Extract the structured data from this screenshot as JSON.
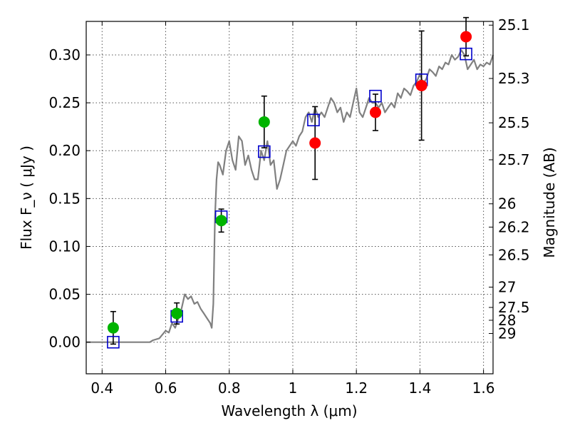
{
  "chart_data": {
    "type": "scatter",
    "xlabel": "Wavelength  λ (μm)",
    "ylabel": "Flux  F_ν  ( μJy )",
    "ylabel2": "Magnitude (AB)",
    "xlim": [
      0.35,
      1.63
    ],
    "ylim": [
      -0.033,
      0.335
    ],
    "xticks": [
      0.4,
      0.6,
      0.8,
      1.0,
      1.2,
      1.4,
      1.6
    ],
    "xtick_labels": [
      "0.4",
      "0.6",
      "0.8",
      "1",
      "1.2",
      "1.4",
      "1.6"
    ],
    "yticks": [
      0.0,
      0.05,
      0.1,
      0.15,
      0.2,
      0.25,
      0.3
    ],
    "ytick_labels": [
      "0.00",
      "0.05",
      "0.10",
      "0.15",
      "0.20",
      "0.25",
      "0.30"
    ],
    "mag_ticks": [
      {
        "label": "25.1",
        "flux": 0.3311
      },
      {
        "label": "25.3",
        "flux": 0.2754
      },
      {
        "label": "25.5",
        "flux": 0.2291
      },
      {
        "label": "25.7",
        "flux": 0.1905
      },
      {
        "label": "26",
        "flux": 0.1445
      },
      {
        "label": "26.2",
        "flux": 0.1202
      },
      {
        "label": "26.5",
        "flux": 0.0912
      },
      {
        "label": "27",
        "flux": 0.0575
      },
      {
        "label": "27.5",
        "flux": 0.0363
      },
      {
        "label": "28",
        "flux": 0.0229
      },
      {
        "label": "29",
        "flux": 0.0091
      }
    ],
    "grid": true,
    "colors": {
      "green": "#00b400",
      "red": "#ff0000",
      "blue": "#0000cc",
      "model": "#808080",
      "errorbar": "#000000"
    },
    "series": [
      {
        "marker": "circle",
        "color": "green",
        "points": [
          {
            "x": 0.435,
            "y": 0.015,
            "yerr": 0.017
          },
          {
            "x": 0.635,
            "y": 0.03,
            "yerr": 0.011
          },
          {
            "x": 0.775,
            "y": 0.127,
            "yerr": 0.012
          },
          {
            "x": 0.91,
            "y": 0.23,
            "yerr": 0.027
          }
        ]
      },
      {
        "marker": "circle",
        "color": "red",
        "points": [
          {
            "x": 1.07,
            "y": 0.208,
            "yerr": 0.038
          },
          {
            "x": 1.26,
            "y": 0.24,
            "yerr": 0.019
          },
          {
            "x": 1.405,
            "y": 0.268,
            "yerr": 0.057
          },
          {
            "x": 1.545,
            "y": 0.319,
            "yerr": 0.02
          }
        ]
      },
      {
        "marker": "open-square",
        "color": "blue",
        "points": [
          {
            "x": 0.435,
            "y": 0.0
          },
          {
            "x": 0.635,
            "y": 0.027
          },
          {
            "x": 0.775,
            "y": 0.131
          },
          {
            "x": 0.91,
            "y": 0.199
          },
          {
            "x": 1.065,
            "y": 0.232
          },
          {
            "x": 1.26,
            "y": 0.257
          },
          {
            "x": 1.405,
            "y": 0.274
          },
          {
            "x": 1.545,
            "y": 0.301
          }
        ]
      },
      {
        "marker": "line",
        "color": "model",
        "x": [
          0.35,
          0.55,
          0.56,
          0.58,
          0.6,
          0.61,
          0.62,
          0.63,
          0.64,
          0.65,
          0.66,
          0.67,
          0.68,
          0.69,
          0.7,
          0.71,
          0.72,
          0.73,
          0.74,
          0.745,
          0.75,
          0.755,
          0.76,
          0.765,
          0.77,
          0.78,
          0.79,
          0.8,
          0.81,
          0.82,
          0.83,
          0.84,
          0.85,
          0.86,
          0.87,
          0.88,
          0.89,
          0.9,
          0.91,
          0.92,
          0.93,
          0.94,
          0.95,
          0.96,
          0.97,
          0.98,
          0.99,
          1.0,
          1.01,
          1.02,
          1.03,
          1.04,
          1.05,
          1.06,
          1.07,
          1.08,
          1.09,
          1.1,
          1.11,
          1.12,
          1.13,
          1.14,
          1.15,
          1.16,
          1.17,
          1.18,
          1.19,
          1.2,
          1.21,
          1.22,
          1.23,
          1.24,
          1.25,
          1.26,
          1.27,
          1.28,
          1.29,
          1.3,
          1.31,
          1.32,
          1.33,
          1.34,
          1.35,
          1.36,
          1.37,
          1.38,
          1.39,
          1.4,
          1.41,
          1.42,
          1.43,
          1.44,
          1.45,
          1.46,
          1.47,
          1.48,
          1.49,
          1.5,
          1.51,
          1.52,
          1.53,
          1.54,
          1.55,
          1.56,
          1.57,
          1.58,
          1.59,
          1.6,
          1.61,
          1.62,
          1.63
        ],
        "y": [
          0.0,
          0.0,
          0.002,
          0.004,
          0.012,
          0.01,
          0.02,
          0.015,
          0.025,
          0.035,
          0.05,
          0.045,
          0.048,
          0.04,
          0.042,
          0.035,
          0.03,
          0.025,
          0.02,
          0.015,
          0.04,
          0.13,
          0.17,
          0.188,
          0.185,
          0.175,
          0.2,
          0.21,
          0.19,
          0.18,
          0.215,
          0.21,
          0.185,
          0.195,
          0.18,
          0.17,
          0.17,
          0.2,
          0.19,
          0.21,
          0.185,
          0.19,
          0.16,
          0.17,
          0.185,
          0.2,
          0.205,
          0.21,
          0.205,
          0.215,
          0.22,
          0.235,
          0.24,
          0.23,
          0.245,
          0.235,
          0.24,
          0.235,
          0.245,
          0.255,
          0.25,
          0.24,
          0.245,
          0.23,
          0.24,
          0.235,
          0.25,
          0.265,
          0.24,
          0.235,
          0.245,
          0.255,
          0.25,
          0.25,
          0.245,
          0.25,
          0.24,
          0.245,
          0.25,
          0.245,
          0.26,
          0.255,
          0.265,
          0.262,
          0.258,
          0.268,
          0.272,
          0.28,
          0.27,
          0.275,
          0.285,
          0.282,
          0.278,
          0.288,
          0.285,
          0.292,
          0.29,
          0.3,
          0.295,
          0.298,
          0.305,
          0.3,
          0.285,
          0.29,
          0.295,
          0.285,
          0.29,
          0.288,
          0.292,
          0.29,
          0.3
        ]
      }
    ]
  }
}
